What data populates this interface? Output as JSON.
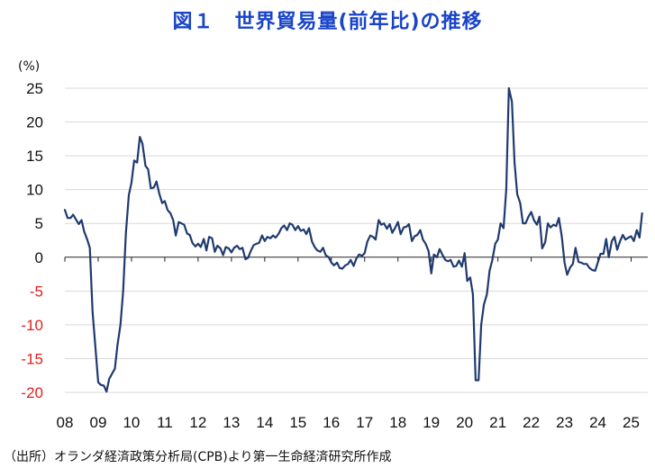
{
  "title": "図１　世界貿易量(前年比)の推移",
  "source": "（出所）オランダ経済政策分析局(CPB)より第一生命経済研究所作成",
  "chart_data": {
    "type": "line",
    "title": "図１　世界貿易量(前年比)の推移",
    "ylabel": "(%)",
    "xlabel": "",
    "ylim": [
      -20,
      25
    ],
    "yticks": [
      25,
      20,
      15,
      10,
      5,
      0,
      -5,
      -10,
      -15,
      -20
    ],
    "ytick_labels": [
      "25",
      "20",
      "15",
      "10",
      "5",
      "0",
      "-5",
      "-10",
      "-15",
      "-20"
    ],
    "xlim": [
      2008,
      2025.5
    ],
    "xticks": [
      {
        "label": "08",
        "year": 2008
      },
      {
        "label": "09",
        "year": 2009
      },
      {
        "label": "10",
        "year": 2010
      },
      {
        "label": "11",
        "year": 2011
      },
      {
        "label": "12",
        "year": 2012
      },
      {
        "label": "13",
        "year": 2013
      },
      {
        "label": "14",
        "year": 2014
      },
      {
        "label": "15",
        "year": 2015
      },
      {
        "label": "16",
        "year": 2016
      },
      {
        "label": "17",
        "year": 2017
      },
      {
        "label": "18",
        "year": 2018
      },
      {
        "label": "19",
        "year": 2019
      },
      {
        "label": "20",
        "year": 2020
      },
      {
        "label": "21",
        "year": 2021
      },
      {
        "label": "22",
        "year": 2022
      },
      {
        "label": "23",
        "year": 2023
      },
      {
        "label": "24",
        "year": 2024
      },
      {
        "label": "25",
        "year": 2025
      }
    ],
    "grid": true,
    "legend": "none",
    "colors": {
      "line": "#1f3a6e",
      "positive_tick": "#111111",
      "negative_tick": "#e0201c",
      "title": "#1a44c8",
      "grid": "#d9d9d9"
    },
    "series": [
      {
        "x": [
          2008.0,
          2008.08,
          2008.17,
          2008.25,
          2008.33,
          2008.42,
          2008.5,
          2008.58,
          2008.67,
          2008.75,
          2008.83,
          2008.92,
          2009.0,
          2009.08,
          2009.17,
          2009.25,
          2009.33,
          2009.42,
          2009.5,
          2009.58,
          2009.67,
          2009.75,
          2009.83,
          2009.92,
          2010.0,
          2010.08,
          2010.17,
          2010.25,
          2010.33,
          2010.42,
          2010.5,
          2010.58,
          2010.67,
          2010.75,
          2010.83,
          2010.92,
          2011.0,
          2011.08,
          2011.17,
          2011.25,
          2011.33,
          2011.42,
          2011.5,
          2011.58,
          2011.67,
          2011.75,
          2011.83,
          2011.92,
          2012.0,
          2012.08,
          2012.17,
          2012.25,
          2012.33,
          2012.42,
          2012.5,
          2012.58,
          2012.67,
          2012.75,
          2012.83,
          2012.92,
          2013.0,
          2013.08,
          2013.17,
          2013.25,
          2013.33,
          2013.42,
          2013.5,
          2013.58,
          2013.67,
          2013.75,
          2013.83,
          2013.92,
          2014.0,
          2014.08,
          2014.17,
          2014.25,
          2014.33,
          2014.42,
          2014.5,
          2014.58,
          2014.67,
          2014.75,
          2014.83,
          2014.92,
          2015.0,
          2015.08,
          2015.17,
          2015.25,
          2015.33,
          2015.42,
          2015.5,
          2015.58,
          2015.67,
          2015.75,
          2015.83,
          2015.92,
          2016.0,
          2016.08,
          2016.17,
          2016.25,
          2016.33,
          2016.42,
          2016.5,
          2016.58,
          2016.67,
          2016.75,
          2016.83,
          2016.92,
          2017.0,
          2017.08,
          2017.17,
          2017.25,
          2017.33,
          2017.42,
          2017.5,
          2017.58,
          2017.67,
          2017.75,
          2017.83,
          2017.92,
          2018.0,
          2018.08,
          2018.17,
          2018.25,
          2018.33,
          2018.42,
          2018.5,
          2018.58,
          2018.67,
          2018.75,
          2018.83,
          2018.92,
          2019.0,
          2019.08,
          2019.17,
          2019.25,
          2019.33,
          2019.42,
          2019.5,
          2019.58,
          2019.67,
          2019.75,
          2019.83,
          2019.92,
          2020.0,
          2020.08,
          2020.17,
          2020.25,
          2020.33,
          2020.42,
          2020.5,
          2020.58,
          2020.67,
          2020.75,
          2020.83,
          2020.92,
          2021.0,
          2021.08,
          2021.17,
          2021.25,
          2021.33,
          2021.42,
          2021.5,
          2021.58,
          2021.67,
          2021.75,
          2021.83,
          2021.92,
          2022.0,
          2022.08,
          2022.17,
          2022.25,
          2022.33,
          2022.42,
          2022.5,
          2022.58,
          2022.67,
          2022.75,
          2022.83,
          2022.92,
          2023.0,
          2023.08,
          2023.17,
          2023.25,
          2023.33,
          2023.42,
          2023.5,
          2023.58,
          2023.67,
          2023.75,
          2023.83,
          2023.92,
          2024.0,
          2024.08,
          2024.17,
          2024.25,
          2024.33,
          2024.42,
          2024.5,
          2024.58,
          2024.67,
          2024.75,
          2024.83,
          2024.92,
          2025.0,
          2025.08,
          2025.17,
          2025.25,
          2025.33
        ],
        "values": [
          7.0,
          5.8,
          5.8,
          6.3,
          5.6,
          4.9,
          5.5,
          3.8,
          2.6,
          1.4,
          -8.0,
          -13.5,
          -18.5,
          -18.9,
          -19.0,
          -19.9,
          -18.0,
          -17.2,
          -16.5,
          -13.0,
          -10.0,
          -5.0,
          3.5,
          9.2,
          11.0,
          14.3,
          14.0,
          17.8,
          16.8,
          13.5,
          13.0,
          10.2,
          10.3,
          11.2,
          9.5,
          8.0,
          8.3,
          7.0,
          6.5,
          5.5,
          3.2,
          5.2,
          5.0,
          4.8,
          3.5,
          3.3,
          2.1,
          1.6,
          2.0,
          1.5,
          2.7,
          1.0,
          3.0,
          2.8,
          0.8,
          1.7,
          1.3,
          0.3,
          1.5,
          1.3,
          0.7,
          1.4,
          1.7,
          1.2,
          1.4,
          -0.3,
          -0.1,
          0.9,
          1.8,
          2.0,
          2.1,
          3.2,
          2.4,
          3.0,
          2.8,
          3.2,
          2.9,
          3.5,
          4.3,
          4.7,
          4.0,
          5.0,
          4.8,
          4.0,
          4.6,
          3.9,
          4.1,
          3.4,
          4.3,
          2.3,
          1.5,
          1.0,
          0.8,
          1.4,
          0.3,
          0.0,
          -0.8,
          -1.2,
          -0.8,
          -1.6,
          -1.7,
          -1.2,
          -1.0,
          -0.4,
          -1.3,
          -0.2,
          0.4,
          0.2,
          0.6,
          2.3,
          3.2,
          3.0,
          2.6,
          5.5,
          4.8,
          5.0,
          4.2,
          4.9,
          3.6,
          4.4,
          5.2,
          3.4,
          4.4,
          4.5,
          4.9,
          2.4,
          3.1,
          3.3,
          4.0,
          2.6,
          2.0,
          0.9,
          -2.4,
          0.4,
          0.0,
          1.2,
          0.4,
          -0.4,
          -0.6,
          -0.4,
          -1.4,
          -1.3,
          -0.5,
          -1.4,
          0.6,
          -3.5,
          -3.0,
          -5.5,
          -18.2,
          -18.2,
          -10.0,
          -7.0,
          -5.5,
          -2.0,
          -0.5,
          2.0,
          2.6,
          5.0,
          4.3,
          10.0,
          25.0,
          23.0,
          14.0,
          9.3,
          8.0,
          5.0,
          5.0,
          6.0,
          6.7,
          5.5,
          4.8,
          6.0,
          1.3,
          2.2,
          5.0,
          4.4,
          4.8,
          4.6,
          5.8,
          3.0,
          -0.8,
          -2.6,
          -1.5,
          -1.0,
          1.4,
          -0.7,
          -0.8,
          -1.0,
          -1.0,
          -1.6,
          -1.9,
          -2.0,
          -0.8,
          0.5,
          0.5,
          2.7,
          0.0,
          2.4,
          3.0,
          1.1,
          2.4,
          3.3,
          2.6,
          2.9,
          3.1,
          2.4,
          4.0,
          2.9,
          6.5
        ]
      }
    ]
  }
}
